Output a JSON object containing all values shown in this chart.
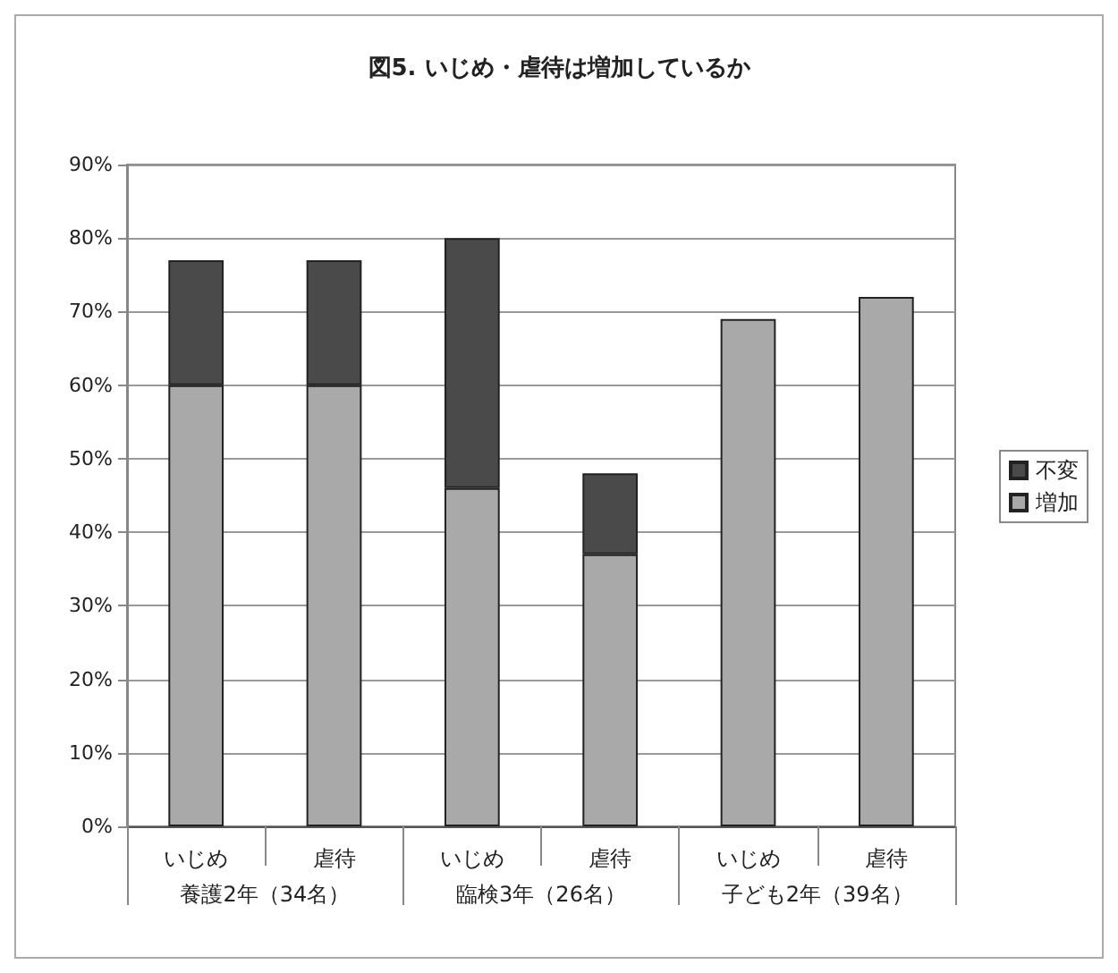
{
  "chart_data": {
    "type": "bar",
    "title": "図5. いじめ・虐待は増加しているか",
    "categories": [
      "いじめ",
      "虐待",
      "いじめ",
      "虐待",
      "いじめ",
      "虐待"
    ],
    "annotations": [
      "養護2年（34名）",
      "臨検3年（26名）",
      "子ども2年（39名）"
    ],
    "stacked": true,
    "series": [
      {
        "name": "増加",
        "color": "#a9a9a9",
        "values": [
          60,
          60,
          46,
          37,
          69,
          72
        ]
      },
      {
        "name": "不変",
        "color": "#4a4a4a",
        "values": [
          17,
          17,
          34,
          11,
          null,
          null
        ]
      }
    ],
    "ylim": [
      0,
      90
    ],
    "yticks": [
      {
        "value": 0,
        "label": "0%"
      },
      {
        "value": 10,
        "label": "10%"
      },
      {
        "value": 20,
        "label": "20%"
      },
      {
        "value": 30,
        "label": "30%"
      },
      {
        "value": 40,
        "label": "40%"
      },
      {
        "value": 50,
        "label": "50%"
      },
      {
        "value": 60,
        "label": "60%"
      },
      {
        "value": 70,
        "label": "70%"
      },
      {
        "value": 80,
        "label": "80%"
      },
      {
        "value": 90,
        "label": "90%"
      }
    ],
    "grid": "y",
    "legend": "right"
  }
}
